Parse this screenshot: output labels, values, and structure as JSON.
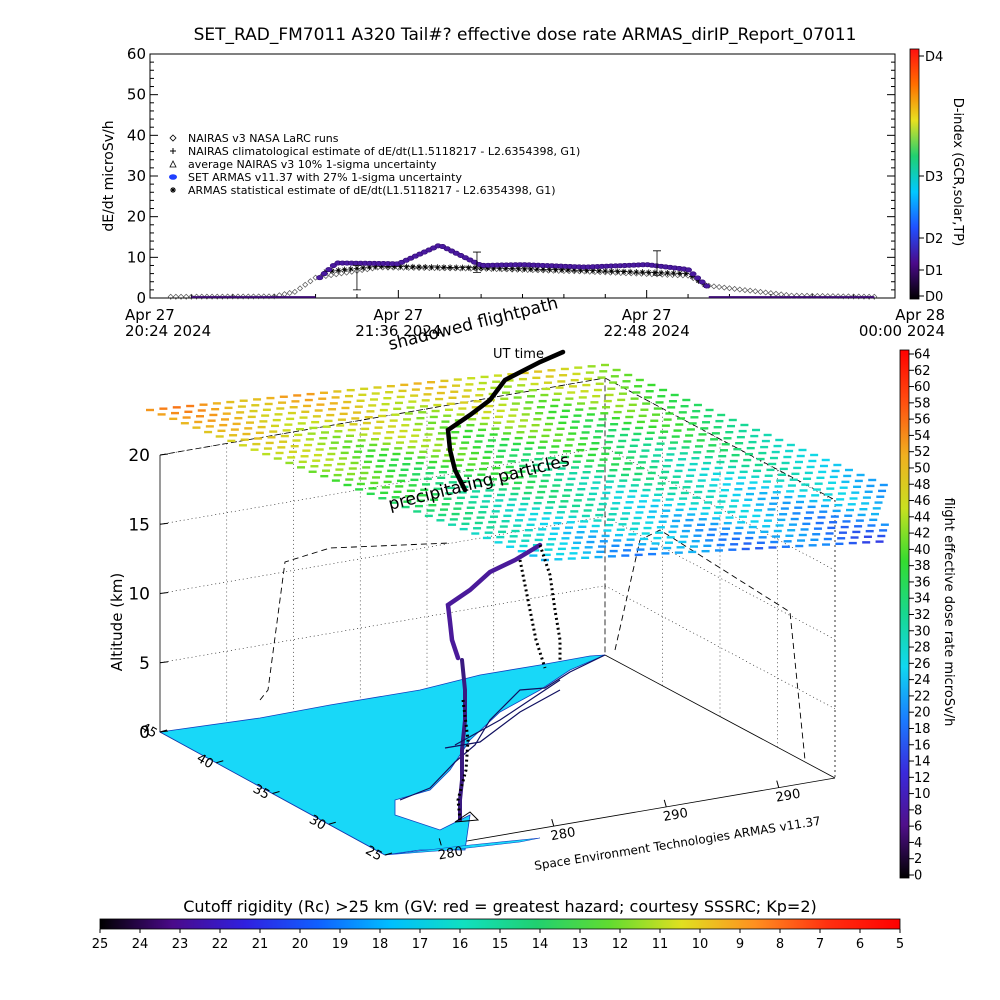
{
  "title": "SET_RAD_FM7011  A320 Tail#? effective dose rate ARMAS_dirIP_Report_07011",
  "chart_data": [
    {
      "type": "scatter",
      "ylabel": "dE/dt microSv/h",
      "ylim": [
        0,
        60
      ],
      "yticks": [
        "0",
        "10",
        "20",
        "30",
        "40",
        "50",
        "60"
      ],
      "xticks": [
        {
          "top": "Apr 27",
          "bottom": "20:24 2024"
        },
        {
          "top": "Apr 27",
          "bottom": "21:36 2024"
        },
        {
          "top": "Apr 27",
          "bottom": "22:48 2024"
        },
        {
          "top": "Apr 28",
          "bottom": "00:00 2024"
        }
      ],
      "xlim_hours": [
        20.4,
        24.0
      ],
      "legend": [
        "NAIRAS v3 NASA LaRC runs",
        "NAIRAS climatological estimate of dE/dt(L1.5118217 - L2.6354398, G1)",
        "average NAIRAS v3 10% 1-sigma uncertainty",
        "SET ARMAS v11.37 with 27% 1-sigma uncertainty",
        "ARMAS statistical estimate of dE/dt(L1.5118217 - L2.6354398, G1)"
      ],
      "legend_placement": "upper-left",
      "series": [
        {
          "name": "NAIRAS v3 NASA LaRC runs",
          "x_hours": [
            20.5,
            21.0,
            21.1,
            21.2,
            21.5,
            22.0,
            22.5,
            23.0,
            23.1,
            23.5,
            23.9
          ],
          "y": [
            0.3,
            0.4,
            1.5,
            5.0,
            7.5,
            7.2,
            6.5,
            5.5,
            3.0,
            0.6,
            0.3
          ]
        },
        {
          "name": "SET ARMAS v11.37 with 27% 1-sigma uncertainty",
          "x_hours": [
            21.22,
            21.3,
            21.5,
            21.6,
            21.8,
            22.0,
            22.2,
            22.5,
            22.8,
            23.0,
            23.1
          ],
          "y": [
            5.0,
            8.6,
            8.5,
            8.4,
            13.0,
            8.0,
            8.2,
            7.6,
            8.2,
            7.0,
            2.5
          ]
        },
        {
          "name": "ARMAS statistical estimate of dE/dt(L1.5118217 - L2.6354398, G1)",
          "x_hours": [
            21.25,
            21.5,
            22.0,
            22.5,
            23.0,
            23.1
          ],
          "y": [
            6.5,
            7.8,
            7.4,
            6.8,
            6.0,
            2.5
          ]
        }
      ],
      "right_colorbar": {
        "label": "D-index (GCR,solar,TP)",
        "ticks": [
          "D4",
          "D3",
          "D2",
          "D1",
          "D0"
        ],
        "colors": [
          "#000000",
          "#4a0a8a",
          "#2050ff",
          "#00c8ff",
          "#20d070",
          "#e8e020",
          "#ff7000",
          "#ff1010"
        ]
      }
    },
    {
      "type": "scatter",
      "subtype": "3d-flightpath",
      "ylabel": "Altitude (km)",
      "zticks": [
        "0",
        "5",
        "10",
        "15",
        "20"
      ],
      "lat_ticks": [
        "45",
        "40",
        "35",
        "30",
        "25"
      ],
      "lon_ticks": [
        "280",
        "280",
        "290",
        "290"
      ],
      "annotations": [
        "shadowed flightpath",
        "UT time",
        "precipitating particles",
        "Space Environment Technologies ARMAS v11.37"
      ],
      "colorbar": {
        "label": "flight effective dose rate microSv/h",
        "ticks": [
          "0",
          "2",
          "4",
          "6",
          "8",
          "10",
          "12",
          "14",
          "16",
          "18",
          "20",
          "22",
          "24",
          "26",
          "28",
          "30",
          "32",
          "34",
          "36",
          "38",
          "40",
          "42",
          "44",
          "46",
          "48",
          "50",
          "52",
          "54",
          "56",
          "58",
          "60",
          "62",
          "64"
        ],
        "colors": [
          "#000000",
          "#50108a",
          "#3a2adc",
          "#1a7cff",
          "#10d8f0",
          "#18d890",
          "#34dc30",
          "#c8e020",
          "#f0b020",
          "#ff5010",
          "#ff0000"
        ]
      }
    },
    {
      "type": "heatmap",
      "title": "Cutoff rigidity (Rc) >25 km (GV: red = greatest hazard; courtesy SSSRC; Kp=2)",
      "ticks": [
        "25",
        "24",
        "23",
        "22",
        "21",
        "20",
        "19",
        "18",
        "17",
        "16",
        "15",
        "14",
        "13",
        "12",
        "11",
        "10",
        "9",
        "8",
        "7",
        "6",
        "5"
      ],
      "range": [
        25,
        5
      ],
      "colors": [
        "#000000",
        "#4a0a8a",
        "#3020e0",
        "#1060ff",
        "#00bfff",
        "#10e0c0",
        "#20d070",
        "#60dc30",
        "#e0e020",
        "#ff9020",
        "#ff3010",
        "#ff0000"
      ]
    }
  ]
}
